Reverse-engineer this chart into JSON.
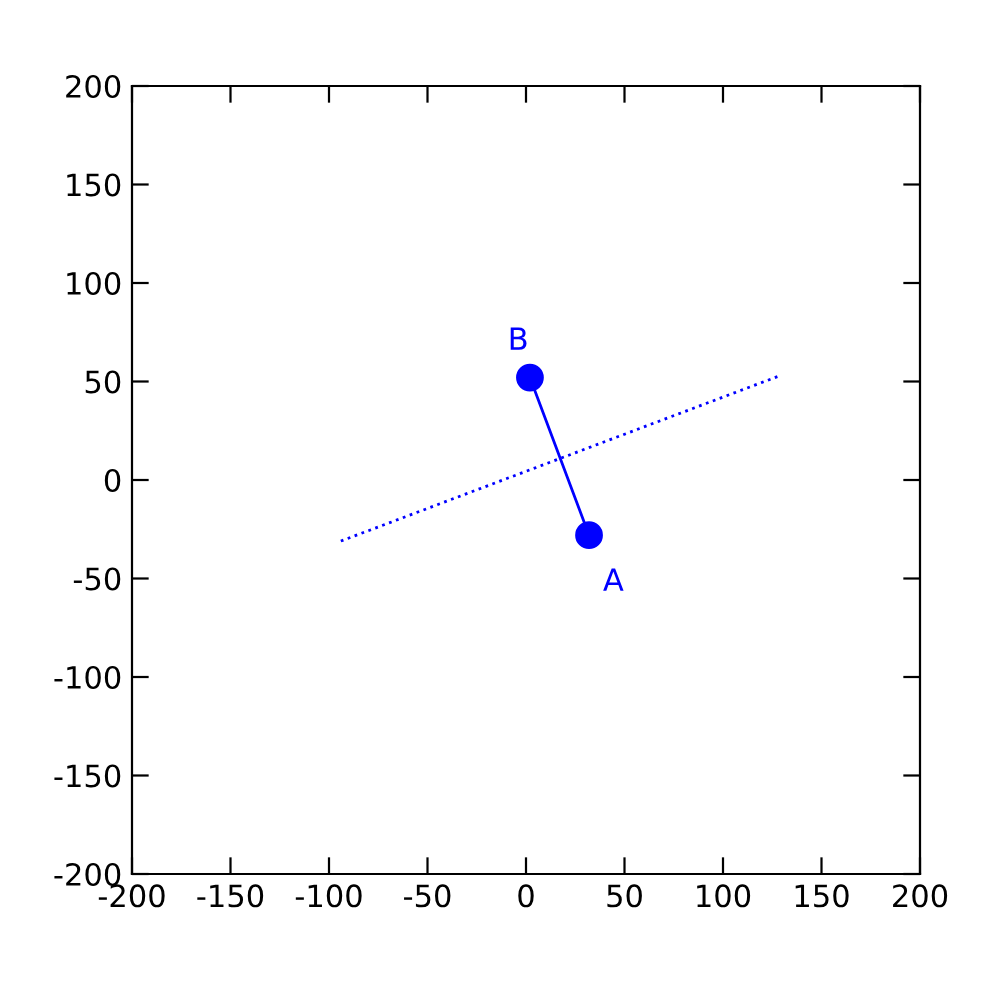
{
  "chart_data": {
    "type": "line",
    "x": [
      32,
      2
    ],
    "series": [
      {
        "color": "#0000ff",
        "values": [
          -28,
          52
        ],
        "marker": "circle",
        "line_style": "solid"
      },
      {
        "color": "#0000ff",
        "x": [
          -94,
          129
        ],
        "values": [
          -31,
          53
        ],
        "marker": "none",
        "line_style": "dotted"
      }
    ],
    "annotations": [
      {
        "text": "A",
        "x": 32,
        "y": -28
      },
      {
        "text": "B",
        "x": 2,
        "y": 52
      }
    ],
    "xlim": [
      -200,
      200
    ],
    "ylim": [
      -200,
      200
    ],
    "xticks": [
      -200,
      -150,
      -100,
      -50,
      0,
      50,
      100,
      150,
      200
    ],
    "yticks": [
      -200,
      -150,
      -100,
      -50,
      0,
      50,
      100,
      150,
      200
    ],
    "grid": false,
    "legend": false
  }
}
